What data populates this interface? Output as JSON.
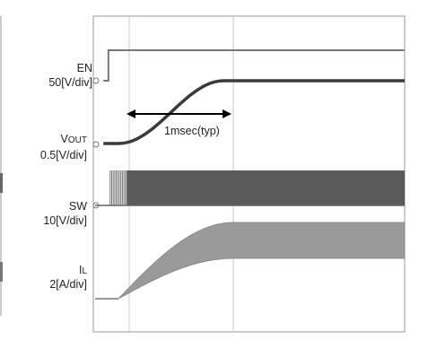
{
  "chart_data": {
    "type": "line",
    "x_unit": "msec",
    "channels": [
      {
        "name": "EN",
        "scale": "50[V/div]"
      },
      {
        "name": "VOUT",
        "name_main": "V",
        "name_sub": "OUT",
        "scale": "0.5[V/div]"
      },
      {
        "name": "SW",
        "scale": "10[V/div]"
      },
      {
        "name": "IL",
        "name_main": "I",
        "name_sub": "L",
        "scale": "2[A/div]"
      }
    ],
    "annotations": [
      {
        "text": "1msec(typ)"
      }
    ],
    "en": {
      "x": [
        0,
        0.05,
        0.05,
        3
      ],
      "y": [
        0,
        0,
        1,
        1
      ]
    },
    "vout": {
      "x": [
        0,
        0.05,
        0.15,
        1.2,
        1.4,
        3
      ],
      "y": [
        0,
        0,
        0,
        1,
        1,
        1
      ]
    },
    "sw": {
      "x_start": 0.05,
      "x_end": 3,
      "level": 1
    },
    "il": {
      "x": [
        0,
        0.05,
        0.15,
        1.3,
        3
      ],
      "y": [
        0,
        0,
        0,
        1,
        1
      ]
    },
    "xlim": [
      -0.1,
      3
    ]
  },
  "colors": {
    "trace": "#3a3a3a",
    "grid": "#c8c8c8",
    "frame": "#999999",
    "label": "#222222"
  }
}
